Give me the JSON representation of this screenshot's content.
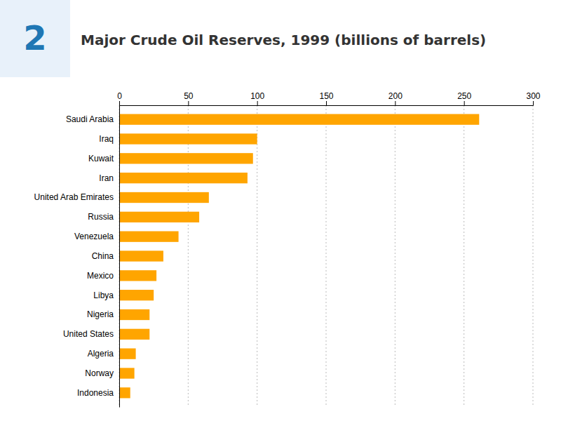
{
  "chart_data": {
    "type": "bar",
    "orientation": "horizontal",
    "title": "Major Crude Oil Reserves, 1999 (billions of barrels)",
    "annotations": [
      "2"
    ],
    "categories": [
      "Saudi Arabia",
      "Iraq",
      "Kuwait",
      "Iran",
      "United Arab Emirates",
      "Russia",
      "Venezuela",
      "China",
      "Mexico",
      "Libya",
      "Nigeria",
      "United States",
      "Algeria",
      "Norway",
      "Indonesia"
    ],
    "values": [
      261,
      100,
      97,
      93,
      65,
      58,
      43,
      32,
      27,
      25,
      22,
      22,
      12,
      11,
      8
    ],
    "color": "#FFA500",
    "xlim": [
      0,
      300
    ],
    "xticks": [
      0,
      50,
      100,
      150,
      200,
      250,
      300
    ],
    "grid": true
  }
}
